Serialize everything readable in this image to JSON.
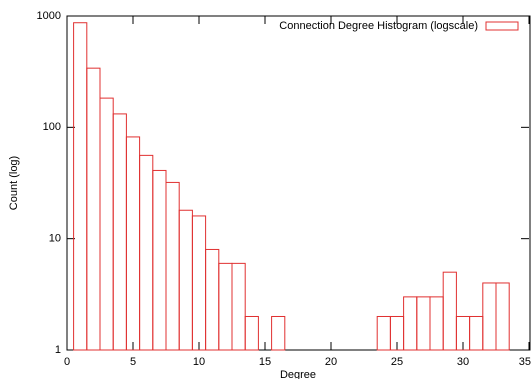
{
  "chart_data": {
    "type": "histogram",
    "xlabel": "Degree",
    "ylabel": "Count (log)",
    "bins": [
      0.5,
      1.5,
      2.5,
      3.5,
      4.5,
      5.5,
      6.5,
      7.5,
      8.5,
      9.5,
      10.5,
      11.5,
      12.5,
      13.5,
      14.5,
      15.5,
      16.5,
      17.5,
      18.5,
      19.5,
      20.5,
      21.5,
      22.5,
      23.5,
      24.5,
      25.5,
      26.5,
      27.5,
      28.5,
      29.5,
      30.5,
      31.5,
      32.5,
      33.5
    ],
    "series": [
      {
        "name": "Connection Degree Histogram (logscale)",
        "color": "#e03030",
        "values": [
          870,
          340,
          183,
          132,
          82,
          56,
          41,
          32,
          18,
          16,
          8,
          6,
          6,
          2,
          0,
          2,
          0,
          0,
          0,
          0,
          0,
          0,
          0,
          2,
          2,
          3,
          3,
          3,
          5,
          2,
          2,
          4,
          4
        ]
      }
    ],
    "xlim": [
      0,
      35
    ],
    "xticks": [
      0,
      5,
      10,
      15,
      20,
      25,
      30,
      35
    ],
    "ylim": [
      1,
      1000
    ],
    "yticks": [
      1,
      10,
      100,
      1000
    ],
    "ylog": true,
    "legend": "top-right"
  }
}
